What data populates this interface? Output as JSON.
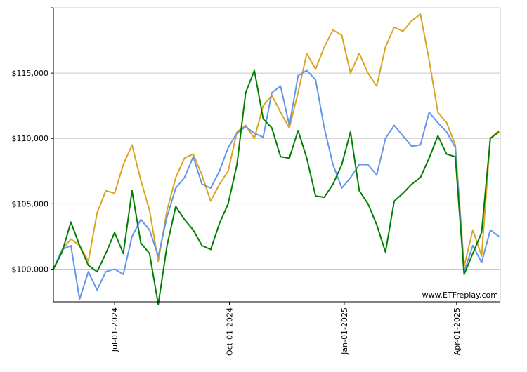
{
  "chart_data": {
    "type": "line",
    "title": "",
    "xlabel": "",
    "ylabel": "",
    "watermark": "www.ETFreplay.com",
    "ylim": [
      97500,
      120000
    ],
    "yticks": [
      {
        "value": 100000,
        "label": "$100,000"
      },
      {
        "value": 105000,
        "label": "$105,000"
      },
      {
        "value": 110000,
        "label": "$110,000"
      },
      {
        "value": 115000,
        "label": "$115,000"
      }
    ],
    "xlim": [
      "2024-05-13",
      "2025-05-06"
    ],
    "xticks": [
      {
        "date": "2024-07-01",
        "label": "Jul-01-2024"
      },
      {
        "date": "2024-10-01",
        "label": "Oct-01-2024"
      },
      {
        "date": "2025-01-01",
        "label": "Jan-01-2025"
      },
      {
        "date": "2025-04-01",
        "label": "Apr-01-2025"
      }
    ],
    "grid": true,
    "series": [
      {
        "color": "#DAA520",
        "points": [
          [
            "2024-05-13",
            100000
          ],
          [
            "2024-05-20",
            101500
          ],
          [
            "2024-05-27",
            102300
          ],
          [
            "2024-06-03",
            101800
          ],
          [
            "2024-06-10",
            100600
          ],
          [
            "2024-06-17",
            104300
          ],
          [
            "2024-06-24",
            106000
          ],
          [
            "2024-07-01",
            105800
          ],
          [
            "2024-07-08",
            108000
          ],
          [
            "2024-07-15",
            109500
          ],
          [
            "2024-07-22",
            106800
          ],
          [
            "2024-07-29",
            104500
          ],
          [
            "2024-08-05",
            100600
          ],
          [
            "2024-08-12",
            104500
          ],
          [
            "2024-08-19",
            107000
          ],
          [
            "2024-08-26",
            108500
          ],
          [
            "2024-09-02",
            108800
          ],
          [
            "2024-09-09",
            107200
          ],
          [
            "2024-09-16",
            105200
          ],
          [
            "2024-09-23",
            106500
          ],
          [
            "2024-09-30",
            107500
          ],
          [
            "2024-10-07",
            110500
          ],
          [
            "2024-10-14",
            111000
          ],
          [
            "2024-10-21",
            110000
          ],
          [
            "2024-10-28",
            112500
          ],
          [
            "2024-11-04",
            113300
          ],
          [
            "2024-11-11",
            112000
          ],
          [
            "2024-11-18",
            110800
          ],
          [
            "2024-11-25",
            113500
          ],
          [
            "2024-12-02",
            116500
          ],
          [
            "2024-12-09",
            115300
          ],
          [
            "2024-12-16",
            117000
          ],
          [
            "2024-12-23",
            118300
          ],
          [
            "2024-12-30",
            117900
          ],
          [
            "2025-01-06",
            115000
          ],
          [
            "2025-01-13",
            116500
          ],
          [
            "2025-01-20",
            115000
          ],
          [
            "2025-01-27",
            114000
          ],
          [
            "2025-02-03",
            117000
          ],
          [
            "2025-02-10",
            118500
          ],
          [
            "2025-02-17",
            118200
          ],
          [
            "2025-02-24",
            119000
          ],
          [
            "2025-03-03",
            119500
          ],
          [
            "2025-03-10",
            116000
          ],
          [
            "2025-03-17",
            112000
          ],
          [
            "2025-03-24",
            111200
          ],
          [
            "2025-03-31",
            109500
          ],
          [
            "2025-04-07",
            100200
          ],
          [
            "2025-04-14",
            103000
          ],
          [
            "2025-04-21",
            101000
          ],
          [
            "2025-04-28",
            110000
          ],
          [
            "2025-05-05",
            110600
          ]
        ]
      },
      {
        "color": "#6495ED",
        "points": [
          [
            "2024-05-13",
            100000
          ],
          [
            "2024-05-20",
            101500
          ],
          [
            "2024-05-27",
            101800
          ],
          [
            "2024-06-03",
            97700
          ],
          [
            "2024-06-10",
            99800
          ],
          [
            "2024-06-17",
            98400
          ],
          [
            "2024-06-24",
            99800
          ],
          [
            "2024-07-01",
            100000
          ],
          [
            "2024-07-08",
            99600
          ],
          [
            "2024-07-15",
            102500
          ],
          [
            "2024-07-22",
            103800
          ],
          [
            "2024-07-29",
            103000
          ],
          [
            "2024-08-05",
            101000
          ],
          [
            "2024-08-12",
            104000
          ],
          [
            "2024-08-19",
            106200
          ],
          [
            "2024-08-26",
            107000
          ],
          [
            "2024-09-02",
            108600
          ],
          [
            "2024-09-09",
            106500
          ],
          [
            "2024-09-16",
            106200
          ],
          [
            "2024-09-23",
            107500
          ],
          [
            "2024-09-30",
            109300
          ],
          [
            "2024-10-07",
            110400
          ],
          [
            "2024-10-14",
            110900
          ],
          [
            "2024-10-21",
            110400
          ],
          [
            "2024-10-28",
            110100
          ],
          [
            "2024-11-04",
            113500
          ],
          [
            "2024-11-11",
            114000
          ],
          [
            "2024-11-18",
            111000
          ],
          [
            "2024-11-25",
            114800
          ],
          [
            "2024-12-02",
            115200
          ],
          [
            "2024-12-09",
            114500
          ],
          [
            "2024-12-16",
            110800
          ],
          [
            "2024-12-23",
            108000
          ],
          [
            "2024-12-30",
            106200
          ],
          [
            "2025-01-06",
            107000
          ],
          [
            "2025-01-13",
            108000
          ],
          [
            "2025-01-20",
            108000
          ],
          [
            "2025-01-27",
            107200
          ],
          [
            "2025-02-03",
            110000
          ],
          [
            "2025-02-10",
            111000
          ],
          [
            "2025-02-17",
            110200
          ],
          [
            "2025-02-24",
            109400
          ],
          [
            "2025-03-03",
            109500
          ],
          [
            "2025-03-10",
            112000
          ],
          [
            "2025-03-17",
            111200
          ],
          [
            "2025-03-24",
            110500
          ],
          [
            "2025-03-31",
            109300
          ],
          [
            "2025-04-07",
            99800
          ],
          [
            "2025-04-14",
            101800
          ],
          [
            "2025-04-21",
            100500
          ],
          [
            "2025-04-28",
            103000
          ],
          [
            "2025-05-05",
            102500
          ]
        ]
      },
      {
        "color": "#008000",
        "points": [
          [
            "2024-05-13",
            100000
          ],
          [
            "2024-05-20",
            101300
          ],
          [
            "2024-05-27",
            103600
          ],
          [
            "2024-06-03",
            101800
          ],
          [
            "2024-06-10",
            100300
          ],
          [
            "2024-06-17",
            99800
          ],
          [
            "2024-06-24",
            101200
          ],
          [
            "2024-07-01",
            102800
          ],
          [
            "2024-07-08",
            101200
          ],
          [
            "2024-07-15",
            106000
          ],
          [
            "2024-07-22",
            102000
          ],
          [
            "2024-07-29",
            101200
          ],
          [
            "2024-08-05",
            97300
          ],
          [
            "2024-08-12",
            101800
          ],
          [
            "2024-08-19",
            104800
          ],
          [
            "2024-08-26",
            103800
          ],
          [
            "2024-09-02",
            103000
          ],
          [
            "2024-09-09",
            101800
          ],
          [
            "2024-09-16",
            101500
          ],
          [
            "2024-09-23",
            103500
          ],
          [
            "2024-09-30",
            105000
          ],
          [
            "2024-10-07",
            108000
          ],
          [
            "2024-10-14",
            113500
          ],
          [
            "2024-10-21",
            115200
          ],
          [
            "2024-10-28",
            111500
          ],
          [
            "2024-11-04",
            110800
          ],
          [
            "2024-11-11",
            108600
          ],
          [
            "2024-11-18",
            108500
          ],
          [
            "2024-11-25",
            110600
          ],
          [
            "2024-12-02",
            108500
          ],
          [
            "2024-12-09",
            105600
          ],
          [
            "2024-12-16",
            105500
          ],
          [
            "2024-12-23",
            106500
          ],
          [
            "2024-12-30",
            108000
          ],
          [
            "2025-01-06",
            110500
          ],
          [
            "2025-01-13",
            106000
          ],
          [
            "2025-01-20",
            105000
          ],
          [
            "2025-01-27",
            103400
          ],
          [
            "2025-02-03",
            101300
          ],
          [
            "2025-02-10",
            105200
          ],
          [
            "2025-02-17",
            105800
          ],
          [
            "2025-02-24",
            106500
          ],
          [
            "2025-03-03",
            107000
          ],
          [
            "2025-03-10",
            108500
          ],
          [
            "2025-03-17",
            110200
          ],
          [
            "2025-03-24",
            108800
          ],
          [
            "2025-03-31",
            108600
          ],
          [
            "2025-04-07",
            99600
          ],
          [
            "2025-04-14",
            101200
          ],
          [
            "2025-04-21",
            102800
          ],
          [
            "2025-04-28",
            110000
          ],
          [
            "2025-05-05",
            110500
          ]
        ]
      }
    ]
  }
}
